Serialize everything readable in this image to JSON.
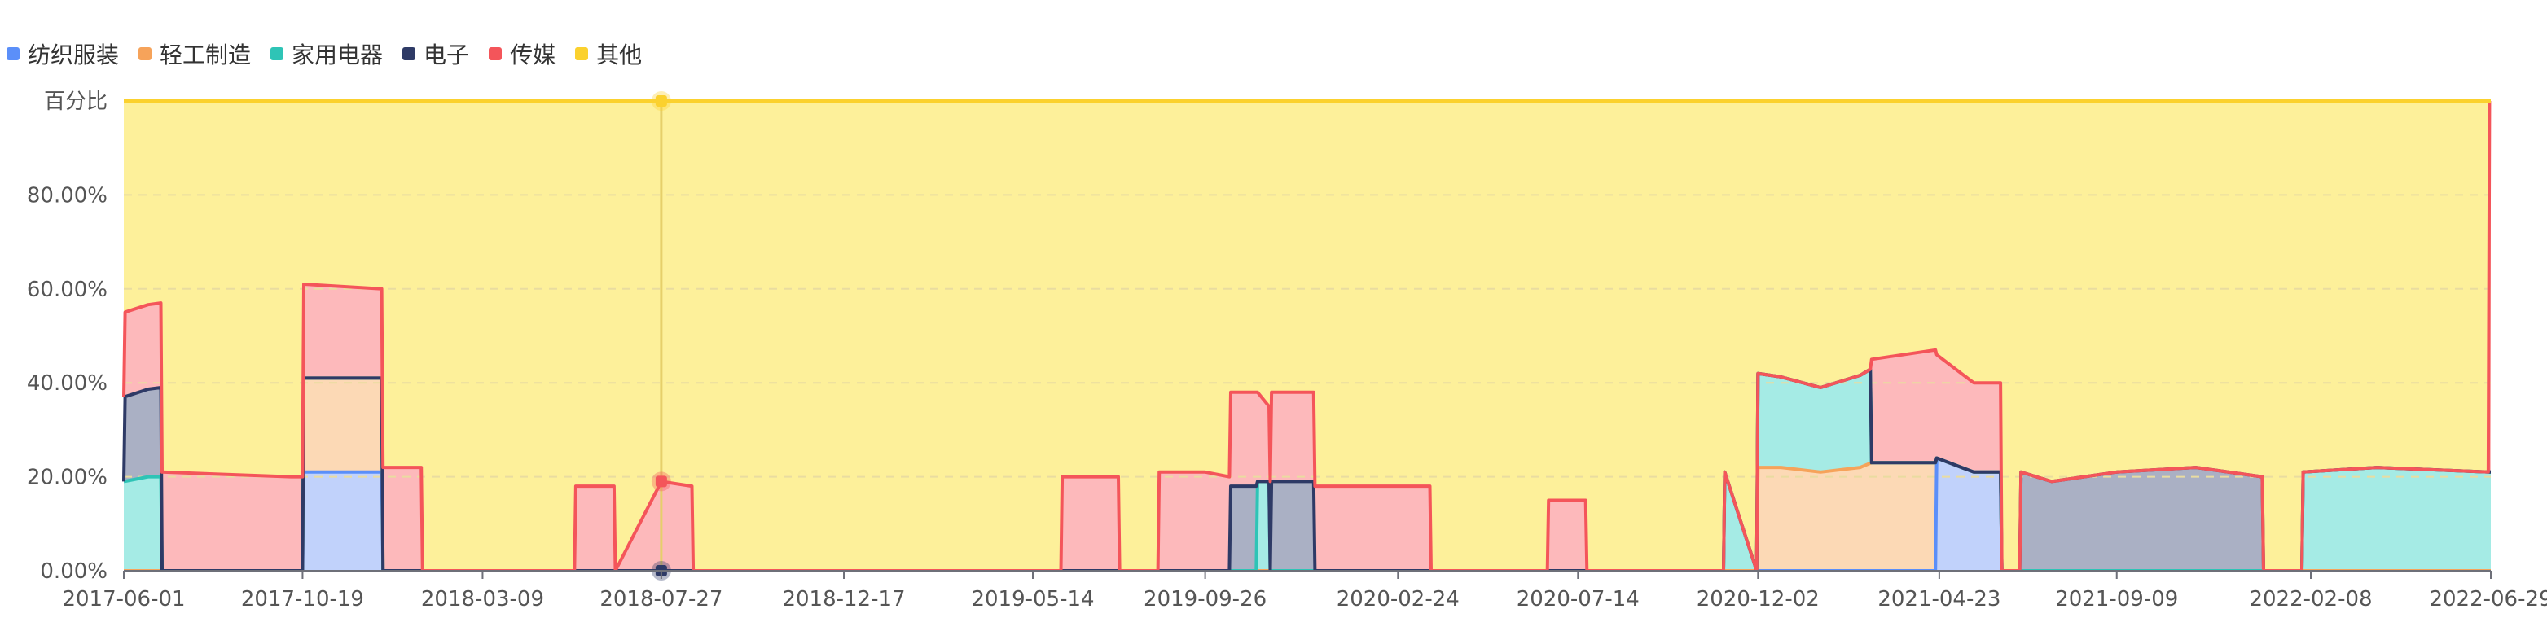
{
  "chart_data": {
    "type": "area",
    "stacked": true,
    "ylabel": "百分比",
    "ylim": [
      0,
      100
    ],
    "y_ticks": [
      "0.00%",
      "20.00%",
      "40.00%",
      "60.00%",
      "80.00%"
    ],
    "x_ticks": [
      "2017-06-01",
      "2017-10-19",
      "2018-03-09",
      "2018-07-27",
      "2018-12-17",
      "2019-05-14",
      "2019-09-26",
      "2020-02-24",
      "2020-07-14",
      "2020-12-02",
      "2021-04-23",
      "2021-09-09",
      "2022-02-08",
      "2022-06-29"
    ],
    "grid": true,
    "legend_position": "top-left",
    "series": [
      {
        "name": "纺织服装",
        "color": "#5b8ff9",
        "fill": "#c1d2fb",
        "points": [
          [
            "2017-06-01",
            0
          ],
          [
            "2017-10-19",
            0
          ],
          [
            "2017-10-20",
            21
          ],
          [
            "2017-12-20",
            21
          ],
          [
            "2017-12-21",
            0
          ],
          [
            "2021-04-20",
            0
          ],
          [
            "2021-04-21",
            24
          ],
          [
            "2021-05-20",
            21
          ],
          [
            "2021-06-10",
            21
          ],
          [
            "2021-06-11",
            0
          ],
          [
            "2022-06-29",
            0
          ]
        ]
      },
      {
        "name": "轻工制造",
        "color": "#f6a35a",
        "fill": "#fcd9b5",
        "points": [
          [
            "2017-06-01",
            0
          ],
          [
            "2017-10-19",
            0
          ],
          [
            "2017-10-20",
            20
          ],
          [
            "2017-12-20",
            20
          ],
          [
            "2017-12-21",
            0
          ],
          [
            "2020-12-01",
            0
          ],
          [
            "2020-12-02",
            22
          ],
          [
            "2020-12-20",
            22
          ],
          [
            "2021-01-20",
            21
          ],
          [
            "2021-02-20",
            22
          ],
          [
            "2021-03-01",
            23
          ],
          [
            "2021-04-20",
            23
          ],
          [
            "2021-04-21",
            0
          ],
          [
            "2021-06-10",
            0
          ],
          [
            "2021-06-11",
            0
          ],
          [
            "2022-06-29",
            0
          ]
        ]
      },
      {
        "name": "家用电器",
        "color": "#2ec4b6",
        "fill": "#a5ebe5",
        "points": [
          [
            "2017-06-01",
            19
          ],
          [
            "2017-06-20",
            20
          ],
          [
            "2017-06-30",
            20
          ],
          [
            "2017-07-01",
            0
          ],
          [
            "2019-11-05",
            0
          ],
          [
            "2019-11-06",
            19
          ],
          [
            "2019-11-15",
            19
          ],
          [
            "2019-11-16",
            0
          ],
          [
            "2020-11-05",
            0
          ],
          [
            "2020-11-06",
            21
          ],
          [
            "2020-12-01",
            0
          ],
          [
            "2020-12-02",
            20
          ],
          [
            "2021-01-20",
            18
          ],
          [
            "2021-02-28",
            20
          ],
          [
            "2021-03-01",
            0
          ],
          [
            "2022-02-01",
            0
          ],
          [
            "2022-02-02",
            21
          ],
          [
            "2022-04-01",
            22
          ],
          [
            "2022-06-29",
            21
          ]
        ]
      },
      {
        "name": "电子",
        "color": "#2e3a66",
        "fill": "#aab0c4",
        "points": [
          [
            "2017-06-01",
            0
          ],
          [
            "2017-06-02",
            18
          ],
          [
            "2017-06-30",
            19
          ],
          [
            "2017-07-01",
            0
          ],
          [
            "2017-10-19",
            0
          ],
          [
            "2017-10-20",
            0
          ],
          [
            "2019-10-15",
            0
          ],
          [
            "2019-10-16",
            18
          ],
          [
            "2019-11-05",
            18
          ],
          [
            "2019-11-06",
            0
          ],
          [
            "2019-11-16",
            0
          ],
          [
            "2019-11-17",
            19
          ],
          [
            "2019-12-20",
            19
          ],
          [
            "2019-12-21",
            0
          ],
          [
            "2021-06-25",
            0
          ],
          [
            "2021-06-26",
            21
          ],
          [
            "2021-07-20",
            19
          ],
          [
            "2021-09-09",
            21
          ],
          [
            "2021-11-10",
            22
          ],
          [
            "2022-01-01",
            20
          ],
          [
            "2022-01-02",
            0
          ],
          [
            "2022-06-29",
            0
          ]
        ]
      },
      {
        "name": "传媒",
        "color": "#f4555a",
        "fill": "#fdb9bb",
        "points": [
          [
            "2017-06-01",
            18
          ],
          [
            "2017-06-30",
            18
          ],
          [
            "2017-07-01",
            21
          ],
          [
            "2017-10-10",
            20
          ],
          [
            "2017-10-19",
            20
          ],
          [
            "2017-10-20",
            20
          ],
          [
            "2017-12-20",
            19
          ],
          [
            "2017-12-21",
            22
          ],
          [
            "2018-01-20",
            22
          ],
          [
            "2018-01-21",
            0
          ],
          [
            "2018-05-20",
            0
          ],
          [
            "2018-05-21",
            18
          ],
          [
            "2018-06-20",
            18
          ],
          [
            "2018-06-21",
            0
          ],
          [
            "2018-07-27",
            19
          ],
          [
            "2018-08-20",
            18
          ],
          [
            "2018-08-21",
            0
          ],
          [
            "2019-06-05",
            0
          ],
          [
            "2019-06-06",
            20
          ],
          [
            "2019-07-20",
            20
          ],
          [
            "2019-07-21",
            0
          ],
          [
            "2019-08-20",
            0
          ],
          [
            "2019-08-21",
            21
          ],
          [
            "2019-09-26",
            21
          ],
          [
            "2019-10-15",
            20
          ],
          [
            "2019-10-16",
            20
          ],
          [
            "2019-11-05",
            20
          ],
          [
            "2019-11-06",
            19
          ],
          [
            "2019-11-15",
            16
          ],
          [
            "2019-11-16",
            19
          ],
          [
            "2019-12-20",
            19
          ],
          [
            "2019-12-21",
            18
          ],
          [
            "2020-03-20",
            18
          ],
          [
            "2020-03-21",
            0
          ],
          [
            "2020-06-20",
            0
          ],
          [
            "2020-06-21",
            15
          ],
          [
            "2020-07-20",
            15
          ],
          [
            "2020-07-21",
            0
          ],
          [
            "2020-11-05",
            0
          ],
          [
            "2020-11-06",
            0
          ],
          [
            "2020-12-01",
            0
          ],
          [
            "2020-12-02",
            0
          ],
          [
            "2021-02-28",
            0
          ],
          [
            "2021-03-01",
            22
          ],
          [
            "2021-04-20",
            24
          ],
          [
            "2021-04-21",
            22
          ],
          [
            "2021-05-20",
            19
          ],
          [
            "2021-06-10",
            19
          ],
          [
            "2021-06-11",
            0
          ],
          [
            "2022-06-27",
            0
          ],
          [
            "2022-06-28",
            100
          ],
          [
            "2022-06-29",
            100
          ]
        ]
      }
    ],
    "other": {
      "name": "其他",
      "color": "#fbd12e",
      "fill": "#fdf09a"
    },
    "crosshair": {
      "x": "2018-07-27",
      "marked_values": [
        19,
        100
      ]
    }
  }
}
